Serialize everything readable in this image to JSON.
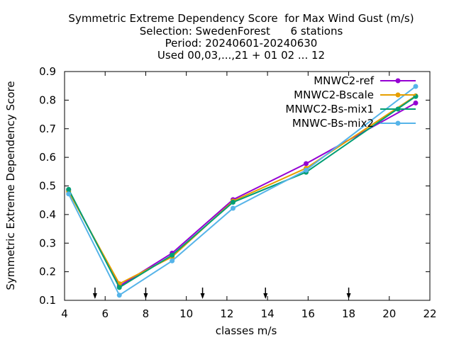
{
  "chart_data": {
    "type": "line",
    "title_lines": [
      "Symmetric Extreme Dependency Score  for Max Wind Gust (m/s)",
      "Selection: SwedenForest      6 stations",
      "Period: 20240601-20240630",
      "Used 00,03,...,21 + 01 02 ... 12"
    ],
    "xlabel": "classes m/s",
    "ylabel": "Symmetric Extreme Dependency Score",
    "xlim": [
      4,
      22
    ],
    "ylim": [
      0.1,
      0.9
    ],
    "xticks": [
      "4",
      "6",
      "8",
      "10",
      "12",
      "14",
      "16",
      "18",
      "20",
      "22"
    ],
    "yticks": [
      "0.1",
      "0.2",
      "0.3",
      "0.4",
      "0.5",
      "0.6",
      "0.7",
      "0.8",
      "0.9"
    ],
    "class_markers": [
      5.5,
      8.0,
      10.8,
      13.9,
      18.0
    ],
    "legend_position": "top-right",
    "series": [
      {
        "name": "MNWC2-ref",
        "color": "#9400d3",
        "marker": "circle",
        "x": [
          4.2,
          6.7,
          9.3,
          12.3,
          15.9,
          21.3
        ],
        "y": [
          0.485,
          0.15,
          0.265,
          0.452,
          0.578,
          0.79
        ]
      },
      {
        "name": "MNWC2-Bscale",
        "color": "#e69f00",
        "marker": "circle",
        "x": [
          4.2,
          6.7,
          9.3,
          12.3,
          15.9,
          21.3
        ],
        "y": [
          0.48,
          0.158,
          0.252,
          0.447,
          0.562,
          0.815
        ]
      },
      {
        "name": "MNWC2-Bs-mix1",
        "color": "#009e73",
        "marker": "circle",
        "x": [
          4.2,
          6.7,
          9.3,
          12.3,
          15.9,
          21.3
        ],
        "y": [
          0.488,
          0.145,
          0.258,
          0.443,
          0.548,
          0.813
        ]
      },
      {
        "name": "MNWC-Bs-mix2",
        "color": "#56b4e9",
        "marker": "circle",
        "x": [
          4.2,
          6.7,
          9.3,
          12.3,
          15.9,
          21.3
        ],
        "y": [
          0.472,
          0.118,
          0.238,
          0.422,
          0.555,
          0.848
        ]
      }
    ]
  }
}
